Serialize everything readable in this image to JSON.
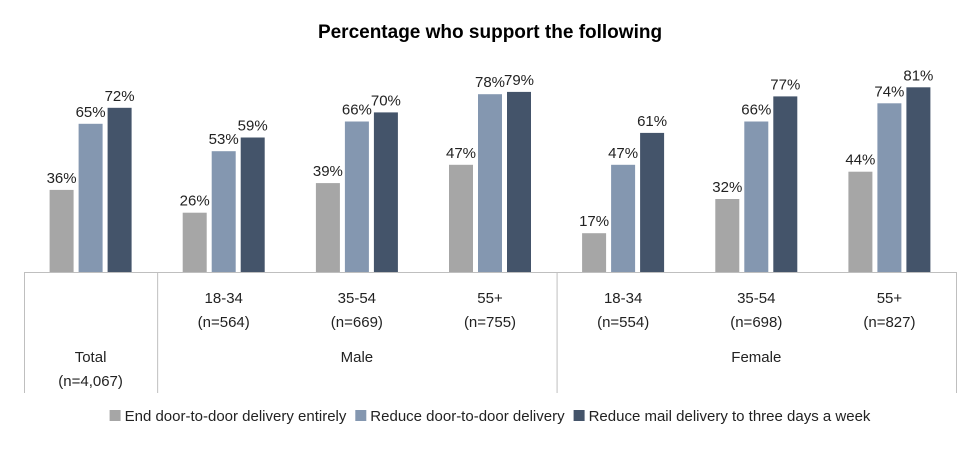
{
  "chart_data": {
    "type": "bar",
    "title": "Percentage who support the following",
    "xlabel": "",
    "ylabel": "",
    "ylim": [
      0,
      100
    ],
    "grid": false,
    "legend_position": "bottom",
    "categories": [
      {
        "sub": "",
        "n": "",
        "label": "Total",
        "label_n": "(n=4,067)"
      },
      {
        "sub": "18-34",
        "n": "(n=564)"
      },
      {
        "sub": "35-54",
        "n": "(n=669)"
      },
      {
        "sub": "55+",
        "n": "(n=755)"
      },
      {
        "sub": "18-34",
        "n": "(n=554)"
      },
      {
        "sub": "35-54",
        "n": "(n=698)"
      },
      {
        "sub": "55+",
        "n": "(n=827)"
      }
    ],
    "groups": [
      {
        "label": "Male",
        "from": 1,
        "to": 3
      },
      {
        "label": "Female",
        "from": 4,
        "to": 6
      }
    ],
    "series": [
      {
        "name": "End door-to-door delivery entirely",
        "color": "#a6a6a6",
        "values": [
          36,
          26,
          39,
          47,
          17,
          32,
          44
        ],
        "labels": [
          "36%",
          "26%",
          "39%",
          "47%",
          "17%",
          "32%",
          "44%"
        ]
      },
      {
        "name": "Reduce door-to-door delivery",
        "color": "#8497b0",
        "values": [
          65,
          53,
          66,
          78,
          47,
          66,
          74
        ],
        "labels": [
          "65%",
          "53%",
          "66%",
          "78%",
          "47%",
          "66%",
          "74%"
        ]
      },
      {
        "name": "Reduce mail delivery to three days a week",
        "color": "#44546a",
        "values": [
          72,
          59,
          70,
          79,
          61,
          77,
          81
        ],
        "labels": [
          "72%",
          "59%",
          "70%",
          "79%",
          "61%",
          "77%",
          "81%"
        ]
      }
    ]
  }
}
